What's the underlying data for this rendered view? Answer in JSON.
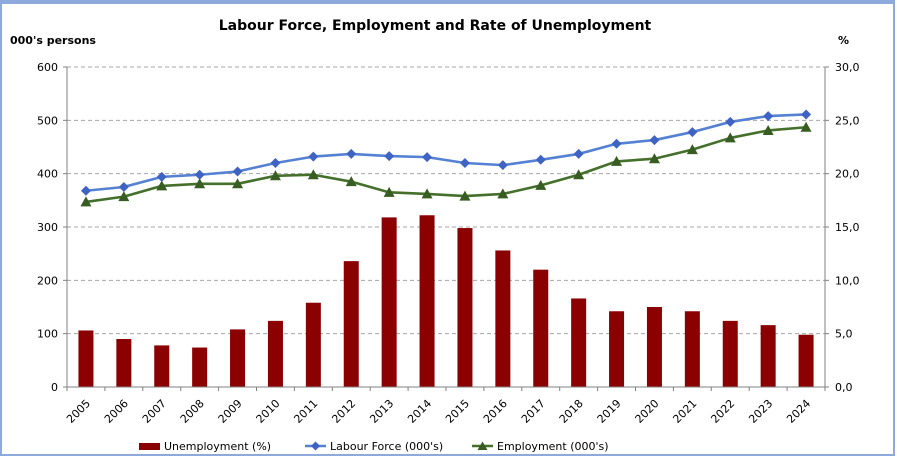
{
  "window": {
    "border_color": "#8EA9DC",
    "background": "#FFFFFF"
  },
  "chart_data": {
    "type": "combo",
    "title": "Labour Force, Employment and Rate of Unemployment",
    "grid": "horizontal-dashed",
    "legend_position": "bottom",
    "left_axis": {
      "label": "000's persons",
      "min": 0,
      "max": 600,
      "step": 100,
      "tick_labels": [
        "600",
        "500",
        "400",
        "300",
        "200",
        "100",
        "0"
      ]
    },
    "right_axis": {
      "label": "%",
      "min": 0,
      "max": 30,
      "step": 5,
      "tick_labels": [
        "30,0",
        "25,0",
        "20,0",
        "15,0",
        "10,0",
        "5,0",
        "0,0"
      ]
    },
    "categories": [
      "2005",
      "2006",
      "2007",
      "2008",
      "2009",
      "2010",
      "2011",
      "2012",
      "2013",
      "2014",
      "2015",
      "2016",
      "2017",
      "2018",
      "2019",
      "2020",
      "2021",
      "2022",
      "2023",
      "2024"
    ],
    "series": [
      {
        "name": "Unemployment (%)",
        "type": "bar",
        "axis": "right",
        "color": "#8B0000",
        "values": [
          5.3,
          4.5,
          3.9,
          3.7,
          5.4,
          6.2,
          7.9,
          11.8,
          15.9,
          16.1,
          14.9,
          12.8,
          11.0,
          8.3,
          7.1,
          7.5,
          7.1,
          6.2,
          5.8,
          4.9
        ]
      },
      {
        "name": "Labour Force (000's)",
        "type": "line",
        "marker": "diamond",
        "axis": "left",
        "color": "#5581D2",
        "marker_color": "#3E63C4",
        "values": [
          368,
          375,
          394,
          398,
          404,
          420,
          432,
          437,
          433,
          431,
          420,
          416,
          426,
          437,
          456,
          463,
          478,
          497,
          508,
          511
        ]
      },
      {
        "name": "Employment (000's)",
        "type": "line",
        "marker": "triangle",
        "axis": "left",
        "color": "#45702B",
        "marker_color": "#375D23",
        "values": [
          347,
          357,
          377,
          381,
          381,
          396,
          398,
          385,
          365,
          362,
          358,
          362,
          378,
          398,
          423,
          428,
          445,
          467,
          481,
          487
        ]
      }
    ],
    "gridline_color": "#A6A6A6",
    "axis_line_color": "#808080"
  }
}
